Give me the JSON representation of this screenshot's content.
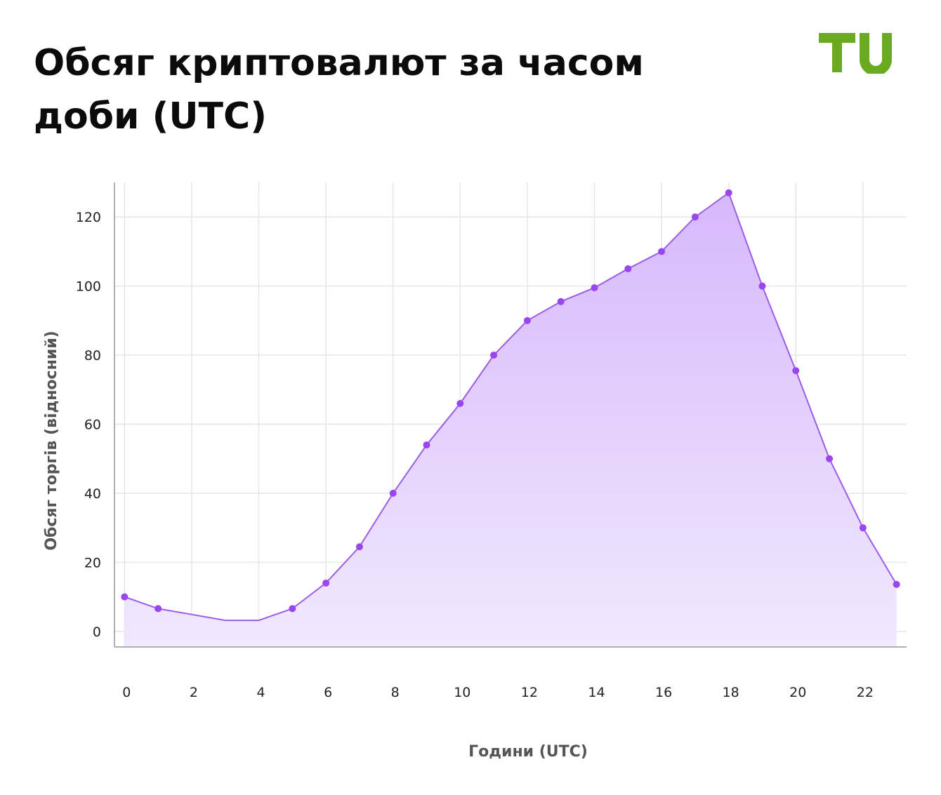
{
  "page": {
    "title": "Обсяг криптовалют за часом доби (UTC)",
    "logo_text": "TU",
    "logo_color": "#6aaa1e"
  },
  "chart_data": {
    "type": "area",
    "title": "Обсяг криптовалют за часом доби (UTC)",
    "xlabel": "Години (UTC)",
    "ylabel": "Обсяг торгів (відносний)",
    "x": [
      0,
      1,
      2,
      3,
      4,
      5,
      6,
      7,
      8,
      9,
      10,
      11,
      12,
      13,
      14,
      15,
      16,
      17,
      18,
      19,
      20,
      21,
      22,
      23
    ],
    "series": [
      {
        "values": [
          10,
          6.6,
          4.9,
          3.2,
          3.2,
          6.6,
          14,
          24.5,
          40,
          54,
          66,
          80,
          90,
          95.5,
          99.5,
          105,
          110,
          120,
          127,
          100,
          75.5,
          50,
          30,
          13.6
        ],
        "markers_at": [
          0,
          1,
          5,
          6,
          7,
          8,
          9,
          10,
          11,
          12,
          13,
          14,
          15,
          16,
          17,
          18,
          19,
          20,
          21,
          22,
          23
        ]
      }
    ],
    "x_ticks": [
      0,
      2,
      4,
      6,
      8,
      10,
      12,
      14,
      16,
      18,
      20,
      22
    ],
    "y_ticks": [
      0,
      20,
      40,
      60,
      80,
      100,
      120
    ],
    "xlim": [
      -0.3,
      23.3
    ],
    "ylim": [
      -4.5,
      130
    ],
    "grid": true,
    "legend": "none",
    "colors": {
      "line": "#9b5de5",
      "marker": "#9b45f0",
      "fill_top": "#d6b8fb",
      "fill_bottom": "#f1e8fe",
      "grid": "#e6e6e6",
      "axis": "#999999"
    }
  }
}
